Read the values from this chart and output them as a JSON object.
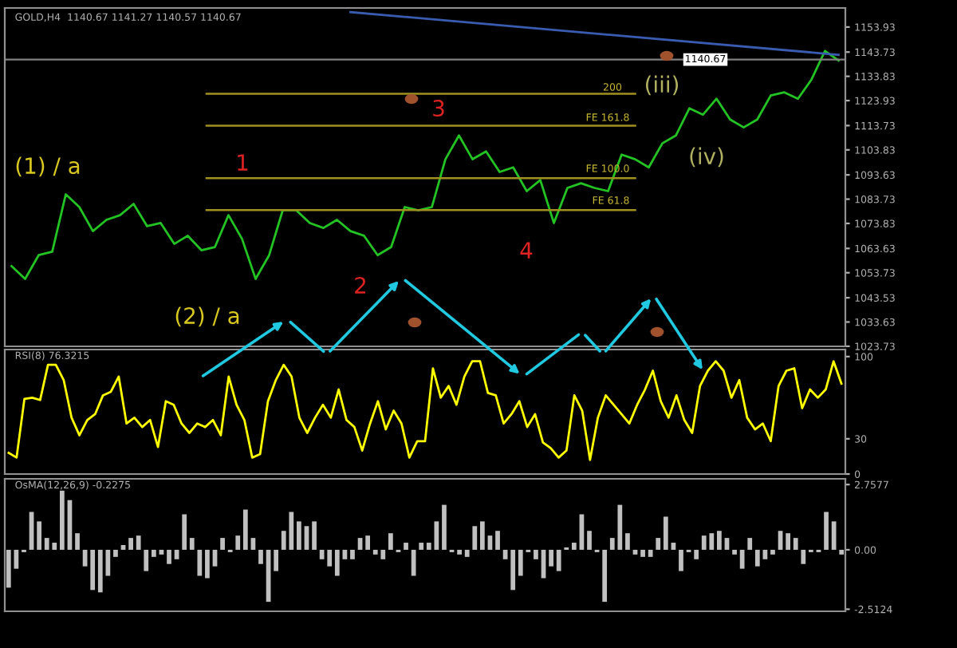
{
  "chart_data": [
    {
      "type": "line",
      "title": "GOLD,H4  1140.67 1141.27 1140.57 1140.67",
      "categories": [
        null,
        null,
        null,
        null,
        null,
        null,
        null,
        null,
        null,
        null,
        null,
        null,
        null,
        null,
        null,
        null,
        null,
        null,
        null,
        null,
        null,
        null,
        null,
        null,
        null,
        null,
        null,
        null,
        null,
        null,
        null,
        null,
        null,
        null,
        null,
        null,
        null,
        null,
        null,
        null,
        null,
        null,
        null,
        null,
        null,
        null,
        null,
        null,
        null,
        null,
        null,
        null,
        null,
        null,
        null,
        null,
        null,
        null,
        null,
        null,
        null,
        null
      ],
      "series": [
        {
          "color": "#22c322",
          "values": [
            1056.4,
            1051.2,
            1060.9,
            1062.3,
            1085.7,
            1080.5,
            1070.7,
            1075.3,
            1077.2,
            1081.8,
            1072.7,
            1074.0,
            1065.5,
            1068.8,
            1062.9,
            1064.2,
            1077.2,
            1067.5,
            1051.2,
            1060.9,
            1079.2,
            1079.2,
            1074.0,
            1072.0,
            1075.3,
            1070.7,
            1068.8,
            1060.9,
            1064.2,
            1080.5,
            1079.2,
            1080.5,
            1100.0,
            1109.7,
            1100.0,
            1103.2,
            1094.8,
            1096.7,
            1087.0,
            1091.5,
            1074.0,
            1088.3,
            1090.2,
            1088.3,
            1087.0,
            1101.9,
            1100.0,
            1096.7,
            1106.5,
            1109.7,
            1120.8,
            1118.2,
            1124.7,
            1116.2,
            1113.0,
            1116.2,
            1126.0,
            1127.3,
            1124.7,
            1132.5,
            1144.2,
            1140.3
          ]
        },
        {
          "color": "#3a5cb0",
          "values": [
            null,
            null,
            null,
            null,
            null,
            null,
            null,
            null,
            null,
            null,
            null,
            null,
            null,
            null,
            null,
            null,
            null,
            null,
            null,
            null,
            null,
            null,
            null,
            null,
            null,
            1160.0,
            null,
            null,
            null,
            null,
            null,
            null,
            null,
            null,
            null,
            null,
            null,
            null,
            null,
            null,
            null,
            null,
            null,
            null,
            null,
            null,
            null,
            null,
            null,
            null,
            null,
            null,
            null,
            null,
            null,
            null,
            null,
            null,
            null,
            null,
            null,
            1142.6
          ]
        }
      ],
      "ylim": [
        1023.7,
        1161.7
      ],
      "yticks": [
        1153.93,
        1143.73,
        1133.83,
        1123.93,
        1113.73,
        1103.83,
        1093.63,
        1083.73,
        1073.83,
        1063.63,
        1053.73,
        1043.53,
        1033.63,
        1023.73
      ],
      "tick_labels": "y",
      "ref_lines": [
        {
          "axis": "y",
          "value": 1126.7,
          "color": "#a09020"
        },
        {
          "axis": "y",
          "value": 1113.7,
          "color": "#a09020"
        },
        {
          "axis": "y",
          "value": 1092.3,
          "color": "#a09020"
        },
        {
          "axis": "y",
          "value": 1079.3,
          "color": "#a09020"
        },
        {
          "axis": "y",
          "value": 1140.67,
          "label": "1140.67",
          "color": "#808080"
        }
      ],
      "annotations": [
        "(1) / a",
        "1",
        "2",
        "3",
        "4",
        "(2) / a",
        "(iii)",
        "(iv)",
        "200",
        "FE 161.8",
        "FE 100.0",
        "FE 61.8"
      ]
    },
    {
      "type": "line",
      "title": "RSI(8) 76.3215",
      "categories": [
        null,
        null,
        null,
        null,
        null,
        null,
        null,
        null,
        null,
        null,
        null,
        null,
        null,
        null,
        null,
        null,
        null,
        null,
        null,
        null,
        null,
        null,
        null,
        null,
        null,
        null,
        null,
        null,
        null,
        null,
        null,
        null,
        null,
        null,
        null,
        null,
        null,
        null,
        null,
        null,
        null,
        null,
        null,
        null,
        null,
        null,
        null,
        null,
        null,
        null,
        null,
        null,
        null,
        null,
        null,
        null,
        null,
        null,
        null,
        null,
        null,
        null,
        null,
        null,
        null,
        null,
        null,
        null,
        null,
        null,
        null,
        null,
        null,
        null,
        null,
        null,
        null,
        null,
        null,
        null,
        null,
        null,
        null,
        null,
        null,
        null,
        null,
        null,
        null,
        null,
        null,
        null,
        null,
        null,
        null,
        null,
        null,
        null,
        null,
        null,
        null,
        null,
        null,
        null,
        null,
        null,
        null
      ],
      "series": [
        {
          "color": "#ffff00",
          "values": [
            18,
            14,
            64,
            65,
            63,
            93,
            93,
            80,
            48,
            33,
            46,
            51,
            67,
            70,
            83,
            43,
            48,
            40,
            46,
            23,
            62,
            59,
            43,
            35,
            43,
            40,
            46,
            33,
            83,
            59,
            46,
            14,
            17,
            62,
            80,
            93,
            83,
            48,
            35,
            48,
            59,
            48,
            72,
            46,
            40,
            20,
            43,
            62,
            38,
            54,
            43,
            14,
            28,
            28,
            90,
            65,
            75,
            59,
            83,
            96,
            96,
            69,
            67,
            43,
            51,
            62,
            40,
            51,
            27,
            22,
            14,
            20,
            67,
            54,
            12,
            48,
            67,
            59,
            51,
            43,
            59,
            72,
            88,
            62,
            48,
            67,
            46,
            35,
            75,
            88,
            96,
            88,
            65,
            80,
            48,
            38,
            43,
            28,
            75,
            88,
            90,
            56,
            72,
            65,
            72,
            96,
            77
          ]
        }
      ],
      "ylim": [
        0,
        106
      ],
      "yticks": [
        0,
        30,
        100
      ],
      "tick_labels": "y"
    },
    {
      "type": "bar",
      "title": "OsMA(12,26,9) -0.2275",
      "categories": [
        null,
        null,
        null,
        null,
        null,
        null,
        null,
        null,
        null,
        null,
        null,
        null,
        null,
        null,
        null,
        null,
        null,
        null,
        null,
        null,
        null,
        null,
        null,
        null,
        null,
        null,
        null,
        null,
        null,
        null,
        null,
        null,
        null,
        null,
        null,
        null,
        null,
        null,
        null,
        null,
        null,
        null,
        null,
        null,
        null,
        null,
        null,
        null,
        null,
        null,
        null,
        null,
        null,
        null,
        null,
        null,
        null,
        null,
        null,
        null,
        null,
        null,
        null,
        null,
        null,
        null,
        null,
        null,
        null,
        null,
        null,
        null,
        null,
        null,
        null,
        null,
        null,
        null,
        null,
        null,
        null,
        null,
        null,
        null,
        null,
        null,
        null,
        null,
        null,
        null,
        null,
        null,
        null,
        null,
        null,
        null,
        null,
        null,
        null,
        null,
        null,
        null,
        null,
        null,
        null,
        null,
        null,
        null,
        null,
        null
      ],
      "series": [
        {
          "color": "#c0c0c0",
          "values": [
            -1.6,
            -0.8,
            -0.1,
            1.6,
            1.2,
            0.5,
            0.3,
            2.5,
            2.1,
            0.7,
            -0.7,
            -1.7,
            -1.8,
            -1.1,
            -0.3,
            0.2,
            0.5,
            0.6,
            -0.9,
            -0.3,
            -0.2,
            -0.6,
            -0.4,
            1.5,
            0.5,
            -1.1,
            -1.2,
            -0.7,
            0.5,
            -0.1,
            0.6,
            1.7,
            0.5,
            -0.6,
            -2.2,
            -0.9,
            0.8,
            1.6,
            1.2,
            1.0,
            1.2,
            -0.4,
            -0.7,
            -1.1,
            -0.4,
            -0.4,
            0.5,
            0.6,
            -0.2,
            -0.4,
            0.7,
            -0.1,
            0.3,
            -1.1,
            0.3,
            0.3,
            1.2,
            1.9,
            -0.1,
            -0.2,
            -0.3,
            1.0,
            1.2,
            0.6,
            0.8,
            -0.4,
            -1.7,
            -1.1,
            -0.1,
            -0.4,
            -1.2,
            -0.7,
            -0.9,
            0.1,
            0.3,
            1.5,
            0.8,
            -0.1,
            -2.2,
            0.5,
            1.9,
            0.7,
            -0.2,
            -0.3,
            -0.3,
            0.5,
            1.4,
            0.3,
            -0.9,
            -0.1,
            -0.4,
            0.6,
            0.7,
            0.8,
            0.5,
            -0.2,
            -0.8,
            0.5,
            -0.7,
            -0.4,
            -0.2,
            0.8,
            0.7,
            0.5,
            -0.6,
            -0.1,
            -0.1,
            1.6,
            1.2,
            -0.2
          ]
        }
      ],
      "ylim": [
        -2.6,
        3.0
      ],
      "yticks": [
        2.7577,
        {
          "value": 0,
          "label": "0.00"
        },
        -2.5124
      ],
      "tick_labels": "y"
    }
  ]
}
